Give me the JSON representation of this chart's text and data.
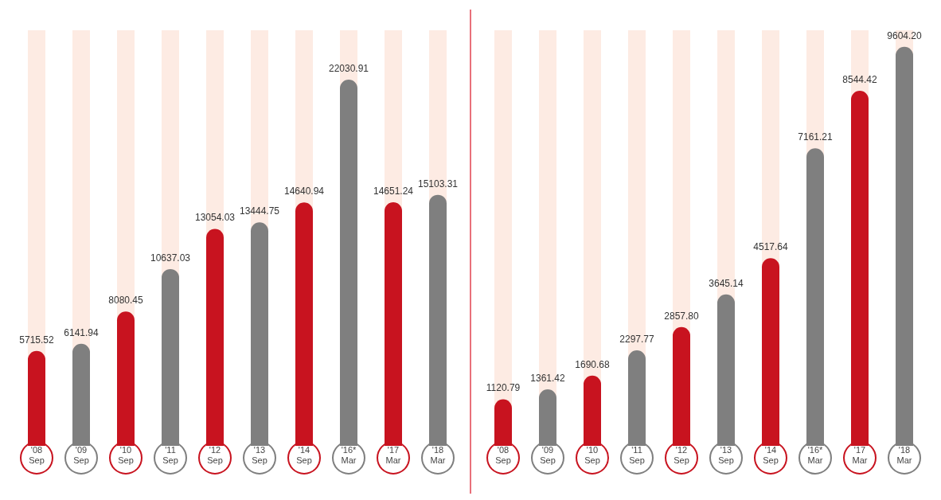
{
  "chart_data": [
    {
      "type": "bar",
      "categories": [
        "'08 Sep",
        "'09 Sep",
        "'10 Sep",
        "'11 Sep",
        "'12 Sep",
        "'13 Sep",
        "'14 Sep",
        "'16* Mar",
        "'17 Mar",
        "'18 Mar"
      ],
      "values": [
        5715.52,
        6141.94,
        8080.45,
        10637.03,
        13054.03,
        13444.75,
        14640.94,
        22030.91,
        14651.24,
        15103.31
      ],
      "value_labels": [
        "5715.52",
        "6141.94",
        "8080.45",
        "10637.03",
        "13054.03",
        "13444.75",
        "14640.94",
        "22030.91",
        "14651.24",
        "15103.31"
      ],
      "colors": [
        "#c8131f",
        "#7f7f7f",
        "#c8131f",
        "#7f7f7f",
        "#c8131f",
        "#7f7f7f",
        "#c8131f",
        "#7f7f7f",
        "#c8131f",
        "#7f7f7f"
      ]
    },
    {
      "type": "bar",
      "categories": [
        "'08 Sep",
        "'09 Sep",
        "'10 Sep",
        "'11 Sep",
        "'12 Sep",
        "'13 Sep",
        "'14 Sep",
        "'16* Mar",
        "'17 Mar",
        "'18 Mar"
      ],
      "values": [
        1120.79,
        1361.42,
        1690.68,
        2297.77,
        2857.8,
        3645.14,
        4517.64,
        7161.21,
        8544.42,
        9604.2
      ],
      "value_labels": [
        "1120.79",
        "1361.42",
        "1690.68",
        "2297.77",
        "2857.80",
        "3645.14",
        "4517.64",
        "7161.21",
        "8544.42",
        "9604.20"
      ],
      "colors": [
        "#c8131f",
        "#7f7f7f",
        "#c8131f",
        "#7f7f7f",
        "#c8131f",
        "#7f7f7f",
        "#c8131f",
        "#7f7f7f",
        "#c8131f",
        "#7f7f7f"
      ]
    }
  ]
}
